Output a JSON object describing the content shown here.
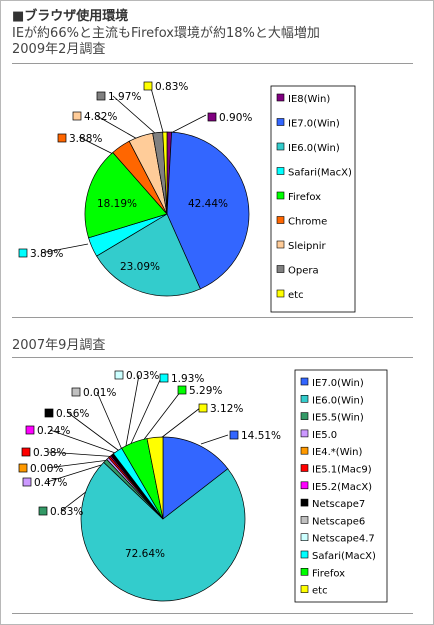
{
  "header": {
    "title": "■ブラウザ使用環境",
    "subtitle": "IEが約66%と主流もFirefox環境が約18%と大幅増加"
  },
  "section1": {
    "date_label": "2009年2月調査"
  },
  "section2": {
    "date_label": "2007年9月調査"
  },
  "chart_data": [
    {
      "type": "pie",
      "title": "2009年2月調査",
      "categories": [
        "IE8(Win)",
        "IE7.0(Win)",
        "IE6.0(Win)",
        "Safari(MacX)",
        "Firefox",
        "Chrome",
        "Sleipnir",
        "Opera",
        "etc"
      ],
      "values": [
        0.9,
        42.44,
        23.09,
        3.89,
        18.19,
        3.88,
        4.82,
        1.97,
        0.83
      ],
      "labels": [
        "0.90%",
        "42.44%",
        "23.09%",
        "3.89%",
        "18.19%",
        "3.88%",
        "4.82%",
        "1.97%",
        "0.83%"
      ],
      "colors": [
        "#800080",
        "#3366ff",
        "#33cccc",
        "#00ffff",
        "#00ff00",
        "#ff6600",
        "#ffcc99",
        "#808080",
        "#ffff00"
      ],
      "legend": "right"
    },
    {
      "type": "pie",
      "title": "2007年9月調査",
      "categories": [
        "IE7.0(Win)",
        "IE6.0(Win)",
        "IE5.5(Win)",
        "IE5.0",
        "IE4.*(Win)",
        "IE5.1(Mac9)",
        "IE5.2(MacX)",
        "Netscape7",
        "Netscape6",
        "Netscape4.7",
        "Safari(MacX)",
        "Firefox",
        "etc"
      ],
      "values": [
        14.51,
        72.64,
        0.83,
        0.47,
        0.0,
        0.38,
        0.24,
        0.56,
        0.01,
        0.03,
        1.93,
        5.29,
        3.12
      ],
      "labels": [
        "14.51%",
        "72.64%",
        "0.83%",
        "0.47%",
        "0.00%",
        "0.38%",
        "0.24%",
        "0.56%",
        "0.01%",
        "0.03%",
        "1.93%",
        "5.29%",
        "3.12%"
      ],
      "colors": [
        "#3366ff",
        "#33cccc",
        "#339966",
        "#cc99ff",
        "#ff9900",
        "#ff0000",
        "#ff00ff",
        "#000000",
        "#c0c0c0",
        "#ccffff",
        "#00ffff",
        "#00ff00",
        "#ffff00"
      ],
      "legend": "right"
    }
  ]
}
